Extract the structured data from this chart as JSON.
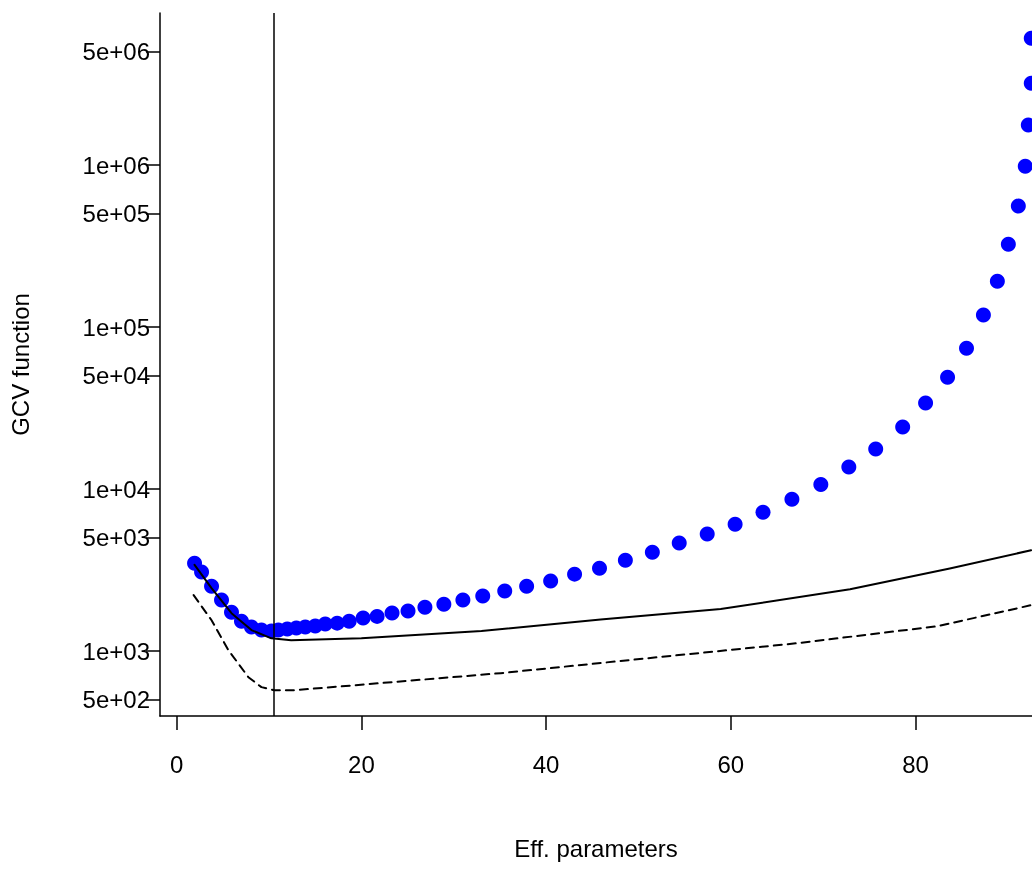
{
  "chart_data": {
    "type": "scatter",
    "xlabel": "Eff. parameters",
    "ylabel": "GCV function",
    "log": "y",
    "xlim": [
      -1.8,
      92.6
    ],
    "ylim": [
      398,
      8700000
    ],
    "xticks": [
      0,
      20,
      40,
      60,
      80
    ],
    "yticks": [
      {
        "value": 500,
        "label": "5e+02"
      },
      {
        "value": 1000,
        "label": "1e+03"
      },
      {
        "value": 5000,
        "label": "5e+03"
      },
      {
        "value": 10000,
        "label": "1e+04"
      },
      {
        "value": 50000,
        "label": "5e+04"
      },
      {
        "value": 100000,
        "label": "1e+05"
      },
      {
        "value": 500000,
        "label": "5e+05"
      },
      {
        "value": 1000000,
        "label": "1e+06"
      },
      {
        "value": 5000000,
        "label": "5e+06"
      }
    ],
    "ref_lines": [
      {
        "axis": "x",
        "value": 10.5,
        "color": "#000000"
      }
    ],
    "series": [
      {
        "color": "#0000ff",
        "marker": "circle",
        "x": [
          1.94,
          2.7,
          3.78,
          4.86,
          5.94,
          7.02,
          8.1,
          9.18,
          10.26,
          11.01,
          11.98,
          12.96,
          13.93,
          15.01,
          16.09,
          17.38,
          18.68,
          20.19,
          21.7,
          23.32,
          25.05,
          26.88,
          28.93,
          30.99,
          33.14,
          35.52,
          37.89,
          40.49,
          43.08,
          45.78,
          48.58,
          51.5,
          54.41,
          57.44,
          60.46,
          63.48,
          66.61,
          69.74,
          72.77,
          75.68,
          78.6,
          81.08,
          83.46,
          85.51,
          87.34,
          88.85,
          90.04,
          91.12,
          91.87,
          92.2,
          92.52,
          92.52
        ],
        "values": [
          3490,
          3080,
          2520,
          2070,
          1740,
          1530,
          1410,
          1350,
          1330,
          1350,
          1370,
          1390,
          1410,
          1430,
          1470,
          1490,
          1530,
          1600,
          1640,
          1720,
          1770,
          1870,
          1950,
          2070,
          2190,
          2350,
          2520,
          2710,
          2990,
          3250,
          3640,
          4080,
          4650,
          5280,
          6080,
          7210,
          8670,
          10700,
          13700,
          17700,
          24200,
          34000,
          49100,
          74200,
          119000,
          192000,
          325000,
          559000,
          986000,
          1770000,
          3210000,
          6080000
        ]
      },
      {
        "type": "line",
        "color": "#000000",
        "marker": "none",
        "line_style": "solid",
        "x": [
          1.94,
          3.78,
          5.94,
          8.1,
          10.26,
          12.4,
          20.0,
          33.0,
          45.9,
          58.9,
          72.9,
          83.7,
          92.5
        ],
        "values": [
          3410,
          2450,
          1715,
          1350,
          1200,
          1170,
          1200,
          1330,
          1570,
          1820,
          2410,
          3240,
          4200
        ]
      },
      {
        "type": "line",
        "color": "#000000",
        "marker": "none",
        "line_style": "dashed",
        "x": [
          1.84,
          3.78,
          5.61,
          7.77,
          9.18,
          10.58,
          12.74,
          35.09,
          48.9,
          67.15,
          82.4,
          92.5
        ],
        "values": [
          2217,
          1553,
          1014,
          691,
          600,
          574,
          574,
          732,
          880,
          1120,
          1427,
          1923
        ]
      }
    ]
  }
}
